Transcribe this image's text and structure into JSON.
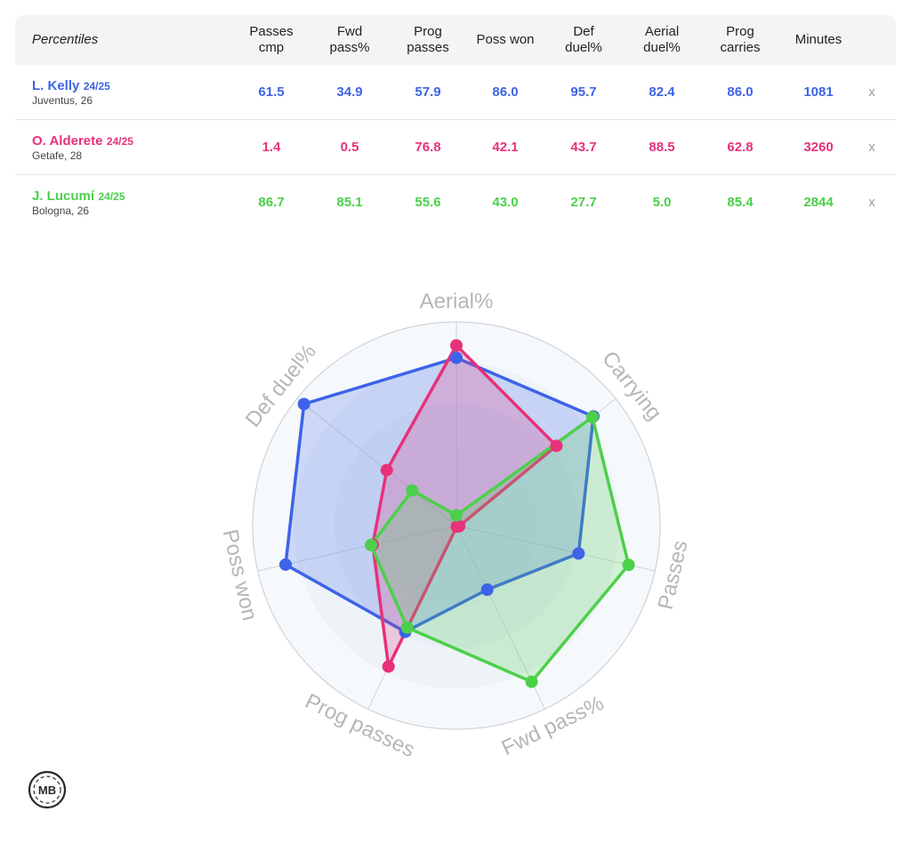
{
  "table": {
    "corner_label": "Percentiles",
    "columns": [
      "Passes\ncmp",
      "Fwd\npass%",
      "Prog\npasses",
      "Poss won",
      "Def\nduel%",
      "Aerial\nduel%",
      "Prog\ncarries",
      "Minutes"
    ],
    "remove_label": "x",
    "players": [
      {
        "name": "L. Kelly",
        "season": "24/25",
        "team": "Juventus, 26",
        "color": "#3d63e8",
        "values": [
          "61.5",
          "34.9",
          "57.9",
          "86.0",
          "95.7",
          "82.4",
          "86.0",
          "1081"
        ]
      },
      {
        "name": "O. Alderete",
        "season": "24/25",
        "team": "Getafe, 28",
        "color": "#e8317a",
        "values": [
          "1.4",
          "0.5",
          "76.8",
          "42.1",
          "43.7",
          "88.5",
          "62.8",
          "3260"
        ]
      },
      {
        "name": "J. Lucumí",
        "season": "24/25",
        "team": "Bologna, 26",
        "color": "#4cd04a",
        "values": [
          "86.7",
          "85.1",
          "55.6",
          "43.0",
          "27.7",
          "5.0",
          "85.4",
          "2844"
        ]
      }
    ]
  },
  "chart_data": {
    "type": "radar",
    "axes": [
      "Aerial%",
      "Carrying",
      "Passes",
      "Fwd pass%",
      "Prog passes",
      "Poss won",
      "Def duel%"
    ],
    "range": [
      0,
      100
    ],
    "series": [
      {
        "name": "L. Kelly",
        "color": "#3d63e8",
        "values": [
          82.4,
          86.0,
          61.5,
          34.9,
          57.9,
          86.0,
          95.7
        ]
      },
      {
        "name": "O. Alderete",
        "color": "#e8317a",
        "values": [
          88.5,
          62.8,
          1.4,
          0.5,
          76.8,
          42.1,
          43.7
        ]
      },
      {
        "name": "J. Lucumí",
        "color": "#4cd04a",
        "values": [
          5.0,
          85.4,
          86.7,
          85.1,
          55.6,
          43.0,
          27.7
        ]
      }
    ]
  },
  "logo": {
    "text": "MB"
  }
}
